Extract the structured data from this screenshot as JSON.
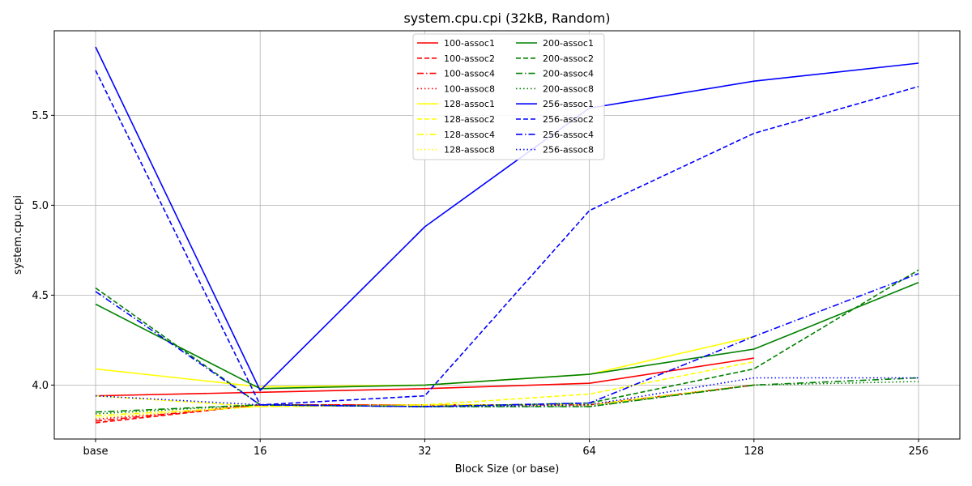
{
  "chart_data": {
    "type": "line",
    "title": "system.cpu.cpi (32kB, Random)",
    "xlabel": "Block Size (or base)",
    "ylabel": "system.cpu.cpi",
    "categories": [
      "base",
      "16",
      "32",
      "64",
      "128",
      "256"
    ],
    "ylim": [
      3.7,
      5.97
    ],
    "yticks": [
      4.0,
      4.5,
      5.0,
      5.5
    ],
    "ytick_labels": [
      "4.0",
      "4.5",
      "5.0",
      "5.5"
    ],
    "grid": true,
    "legend_position": "top-center",
    "series": [
      {
        "name": "100-assoc1",
        "color": "#ff0000",
        "style": "solid",
        "values": [
          3.94,
          3.96,
          3.98,
          4.01,
          4.15,
          null
        ]
      },
      {
        "name": "100-assoc2",
        "color": "#ff0000",
        "style": "dashed",
        "values": [
          3.79,
          3.89,
          3.89,
          3.89,
          4.0,
          null
        ]
      },
      {
        "name": "100-assoc4",
        "color": "#ff0000",
        "style": "dashdot",
        "values": [
          3.8,
          3.89,
          3.89,
          3.89,
          4.0,
          null
        ]
      },
      {
        "name": "100-assoc8",
        "color": "#ff0000",
        "style": "dotted",
        "values": [
          3.81,
          3.89,
          3.89,
          3.89,
          4.0,
          null
        ]
      },
      {
        "name": "128-assoc1",
        "color": "#ffff00",
        "style": "solid",
        "values": [
          4.09,
          3.99,
          4.0,
          4.06,
          4.27,
          null
        ]
      },
      {
        "name": "128-assoc2",
        "color": "#ffff00",
        "style": "dashed",
        "values": [
          3.94,
          3.88,
          3.89,
          3.95,
          4.13,
          null
        ]
      },
      {
        "name": "128-assoc4",
        "color": "#ffff00",
        "style": "dashdot",
        "values": [
          3.83,
          3.88,
          3.89,
          3.89,
          4.0,
          null
        ]
      },
      {
        "name": "128-assoc8",
        "color": "#ffff00",
        "style": "dotted",
        "values": [
          3.82,
          3.88,
          3.89,
          3.89,
          4.0,
          null
        ]
      },
      {
        "name": "200-assoc1",
        "color": "#008000",
        "style": "solid",
        "values": [
          4.45,
          3.98,
          4.0,
          4.06,
          4.2,
          4.57
        ]
      },
      {
        "name": "200-assoc2",
        "color": "#008000",
        "style": "dashed",
        "values": [
          4.54,
          3.89,
          3.88,
          3.9,
          4.09,
          4.64
        ]
      },
      {
        "name": "200-assoc4",
        "color": "#008000",
        "style": "dashdot",
        "values": [
          3.85,
          3.89,
          3.88,
          3.88,
          4.0,
          4.04
        ]
      },
      {
        "name": "200-assoc8",
        "color": "#008000",
        "style": "dotted",
        "values": [
          3.84,
          3.89,
          3.88,
          3.88,
          4.0,
          4.02
        ]
      },
      {
        "name": "256-assoc1",
        "color": "#0000ff",
        "style": "solid",
        "values": [
          5.88,
          3.97,
          4.88,
          5.54,
          5.69,
          5.79
        ]
      },
      {
        "name": "256-assoc2",
        "color": "#0000ff",
        "style": "dashed",
        "values": [
          5.75,
          3.89,
          3.94,
          4.97,
          5.4,
          5.66
        ]
      },
      {
        "name": "256-assoc4",
        "color": "#0000ff",
        "style": "dashdot",
        "values": [
          4.52,
          3.89,
          3.88,
          3.9,
          4.27,
          4.62
        ]
      },
      {
        "name": "256-assoc8",
        "color": "#0000ff",
        "style": "dotted",
        "values": [
          3.94,
          3.89,
          3.88,
          3.89,
          4.04,
          4.04
        ]
      }
    ]
  }
}
